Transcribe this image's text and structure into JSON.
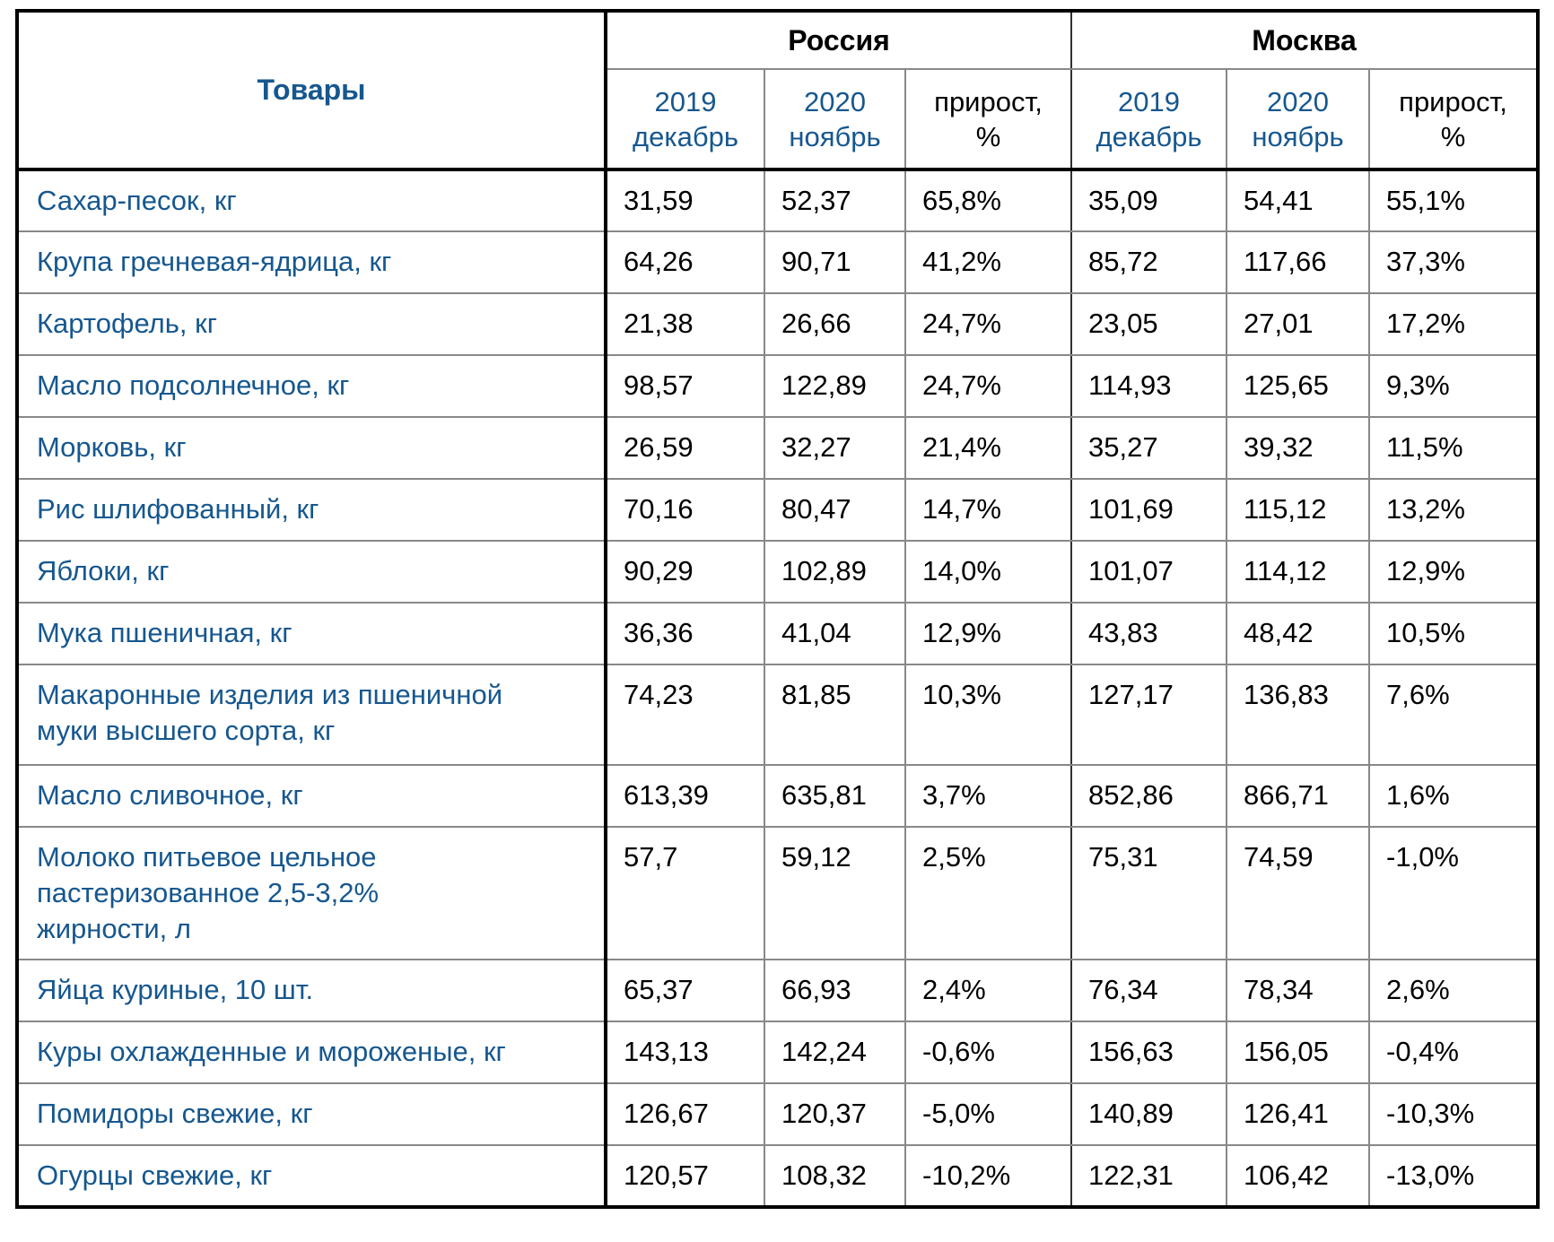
{
  "colors": {
    "accent_blue": "#16578F",
    "text_black": "#000000",
    "border_thick": "#000000",
    "border_grid": "#888888"
  },
  "table": {
    "products_header": "Товары",
    "group_headers": [
      "Россия",
      "Москва"
    ],
    "sub_headers": [
      "2019\nдекабрь",
      "2020\nноябрь",
      "прирост,\n%"
    ],
    "rows": [
      {
        "product": "Сахар-песок, кг",
        "ru_2019": "31,59",
        "ru_2020": "52,37",
        "ru_growth": "65,8%",
        "msk_2019": "35,09",
        "msk_2020": "54,41",
        "msk_growth": "55,1%"
      },
      {
        "product": "Крупа гречневая-ядрица, кг",
        "ru_2019": "64,26",
        "ru_2020": "90,71",
        "ru_growth": "41,2%",
        "msk_2019": "85,72",
        "msk_2020": "117,66",
        "msk_growth": "37,3%"
      },
      {
        "product": "Картофель, кг",
        "ru_2019": "21,38",
        "ru_2020": "26,66",
        "ru_growth": "24,7%",
        "msk_2019": "23,05",
        "msk_2020": "27,01",
        "msk_growth": "17,2%"
      },
      {
        "product": "Масло подсолнечное, кг",
        "ru_2019": "98,57",
        "ru_2020": "122,89",
        "ru_growth": "24,7%",
        "msk_2019": "114,93",
        "msk_2020": "125,65",
        "msk_growth": "9,3%"
      },
      {
        "product": "Морковь, кг",
        "ru_2019": "26,59",
        "ru_2020": "32,27",
        "ru_growth": "21,4%",
        "msk_2019": "35,27",
        "msk_2020": "39,32",
        "msk_growth": "11,5%"
      },
      {
        "product": "Рис шлифованный, кг",
        "ru_2019": "70,16",
        "ru_2020": "80,47",
        "ru_growth": "14,7%",
        "msk_2019": "101,69",
        "msk_2020": "115,12",
        "msk_growth": "13,2%"
      },
      {
        "product": "Яблоки, кг",
        "ru_2019": "90,29",
        "ru_2020": "102,89",
        "ru_growth": "14,0%",
        "msk_2019": "101,07",
        "msk_2020": "114,12",
        "msk_growth": "12,9%"
      },
      {
        "product": "Мука пшеничная, кг",
        "ru_2019": "36,36",
        "ru_2020": "41,04",
        "ru_growth": "12,9%",
        "msk_2019": "43,83",
        "msk_2020": "48,42",
        "msk_growth": "10,5%"
      },
      {
        "product": "Макаронные изделия из пшеничной\nмуки высшего сорта, кг",
        "ru_2019": "74,23",
        "ru_2020": "81,85",
        "ru_growth": "10,3%",
        "msk_2019": "127,17",
        "msk_2020": "136,83",
        "msk_growth": "7,6%"
      },
      {
        "product": "Масло сливочное, кг",
        "ru_2019": "613,39",
        "ru_2020": "635,81",
        "ru_growth": "3,7%",
        "msk_2019": "852,86",
        "msk_2020": "866,71",
        "msk_growth": "1,6%"
      },
      {
        "product": "Молоко питьевое цельное\nпастеризованное 2,5-3,2%\nжирности, л",
        "ru_2019": "57,7",
        "ru_2020": "59,12",
        "ru_growth": "2,5%",
        "msk_2019": "75,31",
        "msk_2020": "74,59",
        "msk_growth": "-1,0%"
      },
      {
        "product": "Яйца куриные, 10 шт.",
        "ru_2019": "65,37",
        "ru_2020": "66,93",
        "ru_growth": "2,4%",
        "msk_2019": "76,34",
        "msk_2020": "78,34",
        "msk_growth": "2,6%"
      },
      {
        "product": "Куры охлажденные и мороженые, кг",
        "ru_2019": "143,13",
        "ru_2020": "142,24",
        "ru_growth": "-0,6%",
        "msk_2019": "156,63",
        "msk_2020": "156,05",
        "msk_growth": "-0,4%"
      },
      {
        "product": "Помидоры свежие, кг",
        "ru_2019": "126,67",
        "ru_2020": "120,37",
        "ru_growth": "-5,0%",
        "msk_2019": "140,89",
        "msk_2020": "126,41",
        "msk_growth": "-10,3%"
      },
      {
        "product": "Огурцы свежие, кг",
        "ru_2019": "120,57",
        "ru_2020": "108,32",
        "ru_growth": "-10,2%",
        "msk_2019": "122,31",
        "msk_2020": "106,42",
        "msk_growth": "-13,0%"
      }
    ]
  }
}
